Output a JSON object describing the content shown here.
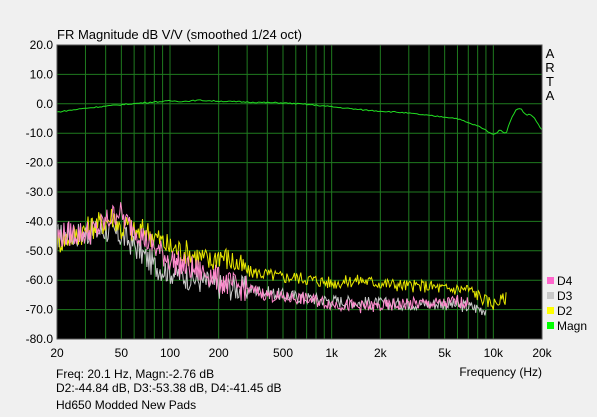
{
  "chart_data": {
    "type": "line",
    "title": "FR Magnitude dB V/V (smoothed 1/24 oct)",
    "xlabel": "Frequency (Hz)",
    "ylabel": "",
    "xscale": "log",
    "xlim": [
      20,
      20000
    ],
    "ylim": [
      -80,
      20
    ],
    "grid": true,
    "legend_position": "right-bottom",
    "xticks": [
      20,
      50,
      100,
      200,
      500,
      1000,
      2000,
      5000,
      10000,
      20000
    ],
    "xtick_labels": [
      "20",
      "50",
      "100",
      "200",
      "500",
      "1k",
      "2k",
      "5k",
      "10k",
      "20k"
    ],
    "yticks": [
      20,
      10,
      0,
      -10,
      -20,
      -30,
      -40,
      -50,
      -60,
      -70,
      -80
    ],
    "ytick_labels": [
      "20.0",
      "10.0",
      "0.0",
      "-10.0",
      "-20.0",
      "-30.0",
      "-40.0",
      "-50.0",
      "-60.0",
      "-70.0",
      "-80.0"
    ],
    "series": [
      {
        "name": "Magn",
        "color": "#22dd22",
        "points": [
          [
            20,
            -2.8
          ],
          [
            30,
            -1.5
          ],
          [
            40,
            -0.8
          ],
          [
            50,
            -0.3
          ],
          [
            70,
            0.4
          ],
          [
            100,
            1.0
          ],
          [
            120,
            0.8
          ],
          [
            150,
            1.2
          ],
          [
            200,
            0.9
          ],
          [
            300,
            0.6
          ],
          [
            400,
            0.4
          ],
          [
            500,
            0.3
          ],
          [
            700,
            -0.2
          ],
          [
            1000,
            -1.0
          ],
          [
            1500,
            -2.0
          ],
          [
            2000,
            -2.5
          ],
          [
            2500,
            -2.8
          ],
          [
            3000,
            -3.2
          ],
          [
            4000,
            -4.0
          ],
          [
            5000,
            -4.5
          ],
          [
            6000,
            -5.0
          ],
          [
            7000,
            -6.5
          ],
          [
            8000,
            -7.5
          ],
          [
            9000,
            -9.0
          ],
          [
            10000,
            -10.5
          ],
          [
            11000,
            -9.0
          ],
          [
            12000,
            -10.0
          ],
          [
            13000,
            -4.5
          ],
          [
            14000,
            -1.5
          ],
          [
            15000,
            -2.0
          ],
          [
            16000,
            -4.0
          ],
          [
            17000,
            -3.5
          ],
          [
            18000,
            -5.0
          ],
          [
            19000,
            -7.0
          ],
          [
            20000,
            -9.0
          ]
        ]
      },
      {
        "name": "D2",
        "color": "#e6e600",
        "points": [
          [
            20,
            -47
          ],
          [
            25,
            -45
          ],
          [
            30,
            -43
          ],
          [
            35,
            -41
          ],
          [
            40,
            -40
          ],
          [
            45,
            -38
          ],
          [
            50,
            -43
          ],
          [
            55,
            -41
          ],
          [
            60,
            -44
          ],
          [
            70,
            -43
          ],
          [
            80,
            -45
          ],
          [
            90,
            -47
          ],
          [
            100,
            -49
          ],
          [
            120,
            -50
          ],
          [
            150,
            -52
          ],
          [
            180,
            -54
          ],
          [
            200,
            -51
          ],
          [
            250,
            -54
          ],
          [
            300,
            -57
          ],
          [
            400,
            -58
          ],
          [
            500,
            -59
          ],
          [
            600,
            -59
          ],
          [
            800,
            -60
          ],
          [
            1000,
            -61
          ],
          [
            1500,
            -60
          ],
          [
            2000,
            -61
          ],
          [
            3000,
            -62
          ],
          [
            4000,
            -62
          ],
          [
            5000,
            -63
          ],
          [
            6000,
            -63
          ],
          [
            7000,
            -63
          ],
          [
            8000,
            -65
          ],
          [
            9000,
            -67
          ],
          [
            10000,
            -68
          ],
          [
            11000,
            -67
          ],
          [
            12000,
            -66
          ]
        ]
      },
      {
        "name": "D3",
        "color": "#c8c8c8",
        "points": [
          [
            20,
            -45
          ],
          [
            30,
            -44
          ],
          [
            40,
            -43
          ],
          [
            50,
            -45
          ],
          [
            60,
            -48
          ],
          [
            70,
            -52
          ],
          [
            80,
            -55
          ],
          [
            100,
            -57
          ],
          [
            150,
            -60
          ],
          [
            200,
            -62
          ],
          [
            300,
            -63
          ],
          [
            500,
            -65
          ],
          [
            700,
            -66
          ],
          [
            1000,
            -67
          ],
          [
            2000,
            -68
          ],
          [
            3000,
            -68
          ],
          [
            5000,
            -68
          ],
          [
            7000,
            -69
          ],
          [
            9000,
            -70
          ]
        ]
      },
      {
        "name": "D4",
        "color": "#ff88cc",
        "points": [
          [
            20,
            -45
          ],
          [
            25,
            -44
          ],
          [
            30,
            -44
          ],
          [
            35,
            -43
          ],
          [
            40,
            -40
          ],
          [
            45,
            -38
          ],
          [
            48,
            -36
          ],
          [
            50,
            -38
          ],
          [
            55,
            -41
          ],
          [
            60,
            -42
          ],
          [
            65,
            -44
          ],
          [
            70,
            -46
          ],
          [
            80,
            -49
          ],
          [
            90,
            -51
          ],
          [
            100,
            -53
          ],
          [
            120,
            -55
          ],
          [
            150,
            -57
          ],
          [
            180,
            -58
          ],
          [
            200,
            -60
          ],
          [
            250,
            -62
          ],
          [
            300,
            -63
          ],
          [
            400,
            -65
          ],
          [
            500,
            -66
          ],
          [
            600,
            -66
          ],
          [
            800,
            -67
          ],
          [
            1000,
            -68
          ],
          [
            1500,
            -69
          ],
          [
            2000,
            -69
          ],
          [
            3000,
            -68
          ],
          [
            4000,
            -68
          ],
          [
            5000,
            -68
          ],
          [
            6000,
            -67
          ],
          [
            7000,
            -68
          ]
        ]
      }
    ]
  },
  "legend": [
    {
      "label": "D4",
      "color": "#ff66cc"
    },
    {
      "label": "D3",
      "color": "#c8c8c8"
    },
    {
      "label": "D2",
      "color": "#ffff00"
    },
    {
      "label": "Magn",
      "color": "#00ff00"
    }
  ],
  "side_logo": [
    "A",
    "R",
    "T",
    "A"
  ],
  "status": {
    "line1": "Freq: 20.1 Hz, Magn:-2.76 dB",
    "line2": "D2:-44.84 dB, D3:-53.38 dB, D4:-41.45 dB"
  },
  "caption": "Hd650 Modded New Pads",
  "colors": {
    "plot_background": "#000000",
    "grid": "#1f7a1f",
    "window_background": "#f0f0f0"
  }
}
